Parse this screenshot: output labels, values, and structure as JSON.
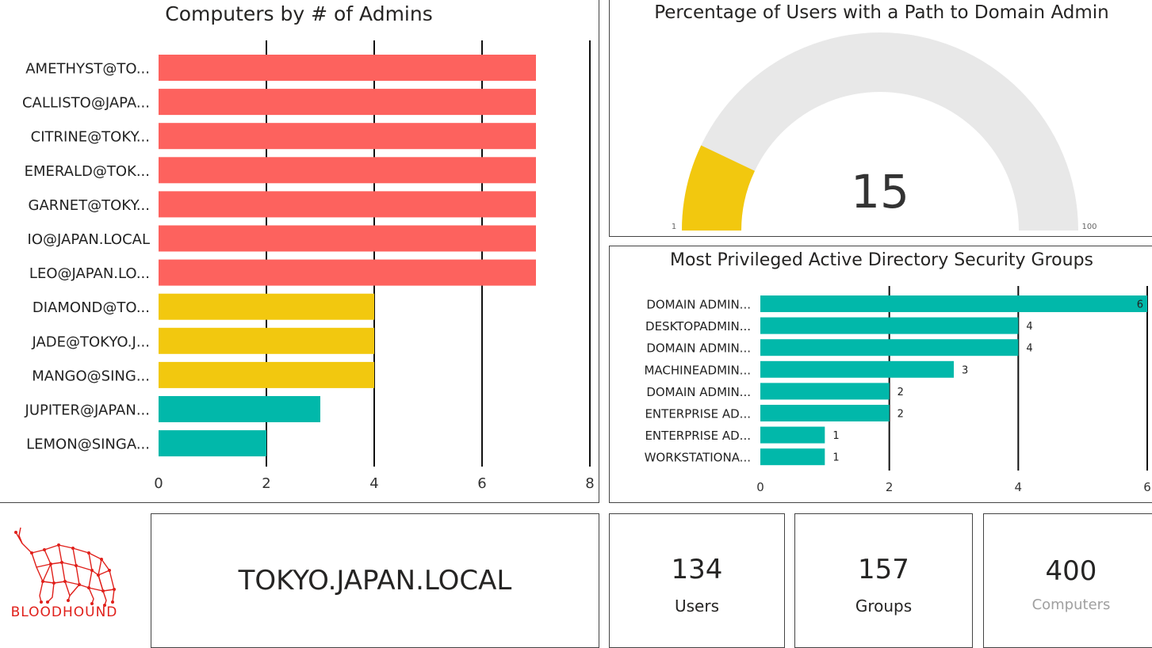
{
  "charts": {
    "computers_by_admins": {
      "type": "bar",
      "title": "Computers by # of Admins",
      "categories": [
        "AMETHYST@TO...",
        "CALLISTO@JAPA...",
        "CITRINE@TOKY...",
        "EMERALD@TOK...",
        "GARNET@TOKY...",
        "IO@JAPAN.LOCAL",
        "LEO@JAPAN.LO...",
        "DIAMOND@TO...",
        "JADE@TOKYO.J...",
        "MANGO@SING...",
        "JUPITER@JAPAN...",
        "LEMON@SINGA..."
      ],
      "values": [
        7,
        7,
        7,
        7,
        7,
        7,
        7,
        4,
        4,
        4,
        3,
        2
      ],
      "colors": [
        "#fd625e",
        "#fd625e",
        "#fd625e",
        "#fd625e",
        "#fd625e",
        "#fd625e",
        "#fd625e",
        "#f2c80f",
        "#f2c80f",
        "#f2c80f",
        "#01b8aa",
        "#01b8aa"
      ],
      "xlim": [
        0,
        8
      ],
      "ticks": [
        "0",
        "2",
        "4",
        "6",
        "8"
      ]
    },
    "path_to_da": {
      "type": "gauge",
      "title": "Percentage of Users with a Path to Domain Admin",
      "value": 15,
      "min": 1,
      "max": 100,
      "value_label": "15",
      "min_label": "1",
      "max_label": "100",
      "fill_color": "#f2c80f",
      "track_color": "#e8e8e8"
    },
    "privileged_groups": {
      "type": "bar",
      "title": "Most Privileged Active Directory Security Groups",
      "categories": [
        "DOMAIN ADMIN...",
        "DESKTOPADMIN...",
        "DOMAIN ADMIN...",
        "MACHINEADMIN...",
        "DOMAIN ADMIN...",
        "ENTERPRISE AD...",
        "ENTERPRISE AD...",
        "WORKSTATIONA..."
      ],
      "values": [
        6,
        4,
        4,
        3,
        2,
        2,
        1,
        1
      ],
      "value_labels": [
        "6",
        "4",
        "4",
        "3",
        "2",
        "2",
        "1",
        "1"
      ],
      "color": "#01b8aa",
      "xlim": [
        0,
        6
      ],
      "ticks": [
        "0",
        "2",
        "4",
        "6"
      ]
    }
  },
  "logo": {
    "text": "BLOODHOUND",
    "color": "#e0201b"
  },
  "domain_card": {
    "text": "TOKYO.JAPAN.LOCAL"
  },
  "cards": [
    {
      "value": "134",
      "label": "Users"
    },
    {
      "value": "157",
      "label": "Groups"
    },
    {
      "value": "400",
      "label": "Computers"
    }
  ]
}
